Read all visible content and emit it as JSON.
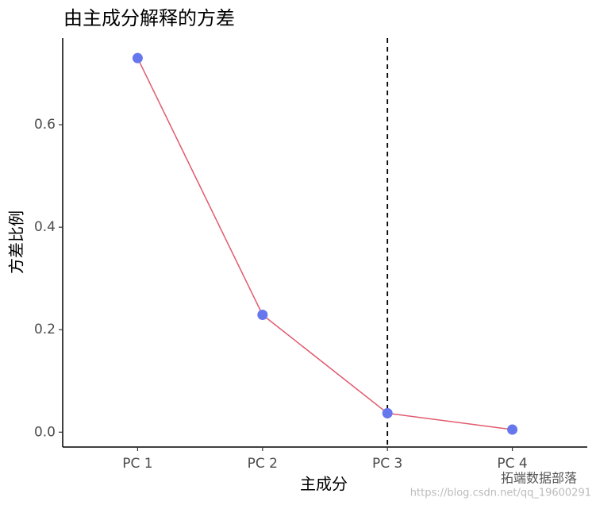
{
  "chart_data": {
    "type": "line",
    "title": "由主成分解释的方差",
    "x_label": "主成分",
    "y_label": "方差比例",
    "categories": [
      "PC 1",
      "PC 2",
      "PC 3",
      "PC 4"
    ],
    "series": [
      {
        "name": "方差比例",
        "color": "#e05a6e",
        "point_color": "#6677ee",
        "values": [
          0.73,
          0.229,
          0.037,
          0.005
        ]
      }
    ],
    "ylim": [
      -0.029,
      0.769
    ],
    "yticks": [
      {
        "value": 0,
        "label": "0.0"
      },
      0.2,
      0.4,
      0.6
    ],
    "vline": "PC 3",
    "grid": false,
    "watermark": [
      "拓端数据部落",
      "https://blog.csdn.net/qq_19600291"
    ]
  }
}
